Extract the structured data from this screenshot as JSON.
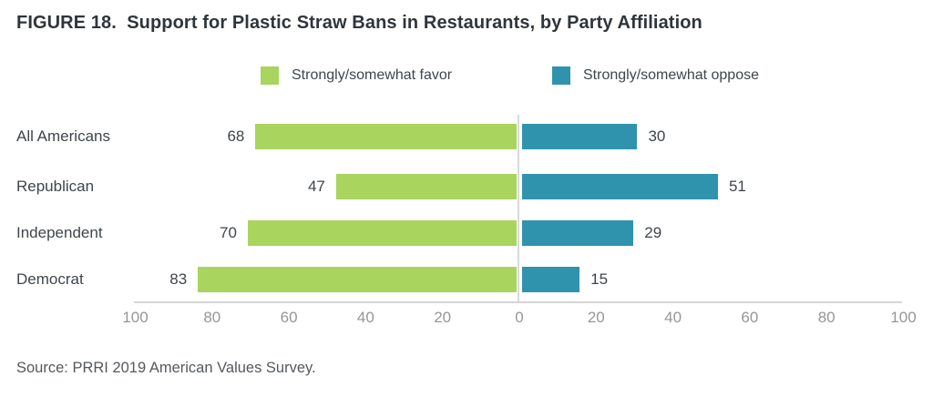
{
  "figure": {
    "title": "FIGURE 18.  Support for Plastic Straw Bans in Restaurants, by Party Affiliation",
    "source": "Source: PRRI 2019 American Values Survey."
  },
  "legend": [
    {
      "label": "Strongly/somewhat favor",
      "color": "#a9d45e"
    },
    {
      "label": "Strongly/somewhat oppose",
      "color": "#2f93ad"
    }
  ],
  "chart_data": {
    "type": "bar",
    "variant": "horizontal-diverging",
    "title": "FIGURE 18.  Support for Plastic Straw Bans in Restaurants, by Party Affiliation",
    "categories": [
      "All Americans",
      "Republican",
      "Independent",
      "Democrat"
    ],
    "series": [
      {
        "name": "Strongly/somewhat favor",
        "direction": "left",
        "color": "#a9d45e",
        "values": [
          68,
          47,
          70,
          83
        ]
      },
      {
        "name": "Strongly/somewhat oppose",
        "direction": "right",
        "color": "#2f93ad",
        "values": [
          30,
          51,
          29,
          15
        ]
      }
    ],
    "axis": {
      "tick_values": [
        -100,
        -80,
        -60,
        -40,
        -20,
        0,
        20,
        40,
        60,
        80,
        100
      ],
      "tick_labels": [
        "100",
        "80",
        "60",
        "40",
        "20",
        "0",
        "20",
        "40",
        "60",
        "80",
        "100"
      ],
      "min": -100,
      "max": 100,
      "grid": false
    },
    "legend_position": "top",
    "xlabel": "",
    "ylabel": "",
    "source": "Source: PRRI 2019 American Values Survey."
  }
}
